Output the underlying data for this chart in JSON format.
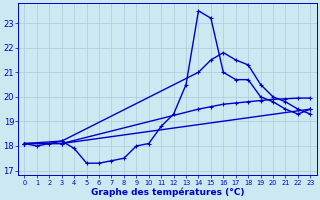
{
  "xlabel": "Graphe des températures (°C)",
  "xlim": [
    -0.5,
    23.5
  ],
  "ylim": [
    16.8,
    23.8
  ],
  "yticks": [
    17,
    18,
    19,
    20,
    21,
    22,
    23
  ],
  "xticks": [
    0,
    1,
    2,
    3,
    4,
    5,
    6,
    7,
    8,
    9,
    10,
    11,
    12,
    13,
    14,
    15,
    16,
    17,
    18,
    19,
    20,
    21,
    22,
    23
  ],
  "bg_color": "#cce8f0",
  "grid_color": "#aaccd8",
  "line_color": "#0000cc",
  "series": {
    "actual": {
      "x": [
        0,
        1,
        2,
        3,
        4,
        5,
        6,
        7,
        8,
        9,
        10,
        11,
        12,
        13,
        14,
        15,
        16,
        17,
        18,
        19,
        20,
        21,
        22,
        23
      ],
      "y": [
        18.1,
        18.0,
        18.1,
        18.2,
        17.9,
        17.3,
        17.3,
        17.4,
        17.5,
        18.0,
        18.1,
        18.8,
        19.3,
        20.5,
        23.5,
        23.2,
        21.0,
        20.7,
        20.7,
        20.0,
        19.8,
        19.5,
        19.3,
        19.5
      ]
    },
    "tmax": {
      "x": [
        0,
        3,
        14,
        15,
        16,
        17,
        18,
        19,
        20,
        21,
        22,
        23
      ],
      "y": [
        18.1,
        18.2,
        21.0,
        21.5,
        21.8,
        21.5,
        21.3,
        20.5,
        20.0,
        19.8,
        19.5,
        19.3
      ]
    },
    "tmin": {
      "x": [
        0,
        3,
        23
      ],
      "y": [
        18.1,
        18.1,
        19.5
      ]
    },
    "tmean": {
      "x": [
        0,
        3,
        14,
        15,
        16,
        17,
        18,
        19,
        20,
        21,
        22,
        23
      ],
      "y": [
        18.1,
        18.1,
        19.5,
        19.6,
        19.7,
        19.75,
        19.8,
        19.85,
        19.9,
        19.92,
        19.95,
        19.95
      ]
    }
  },
  "marker": "+",
  "marker_size": 3.5,
  "linewidth": 1.0
}
